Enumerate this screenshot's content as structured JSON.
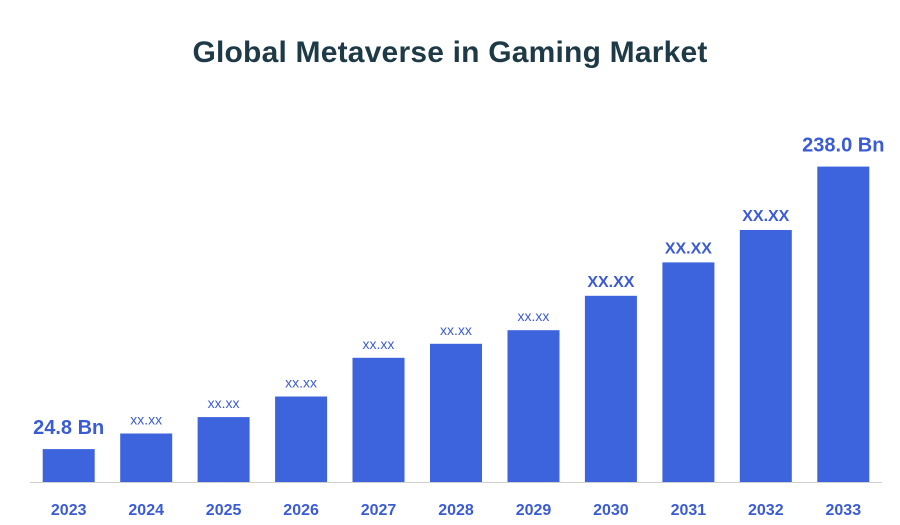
{
  "chart_data": {
    "type": "bar",
    "title": "Global Metaverse in Gaming Market",
    "xlabel": "",
    "ylabel": "",
    "categories": [
      "2023",
      "2024",
      "2025",
      "2026",
      "2027",
      "2028",
      "2029",
      "2030",
      "2031",
      "2032",
      "2033"
    ],
    "values": [
      24.8,
      36.6,
      49.0,
      64.5,
      93.7,
      104.3,
      114.5,
      140.5,
      165.7,
      190.1,
      238.0
    ],
    "data_labels": [
      "24.8 Bn",
      "xx.xx",
      "xx.xx",
      "xx.xx",
      "xx.xx",
      "xx.xx",
      "xx.xx",
      "XX.XX",
      "XX.XX",
      "XX.XX",
      "238.0 Bn"
    ],
    "ylim": [
      0,
      252
    ],
    "grid": false,
    "legend": "none"
  },
  "colors": {
    "bar": "#3d63dd",
    "title": "#1f3a47",
    "label": "#3b5bd6",
    "axis": "#d0d0d0"
  }
}
